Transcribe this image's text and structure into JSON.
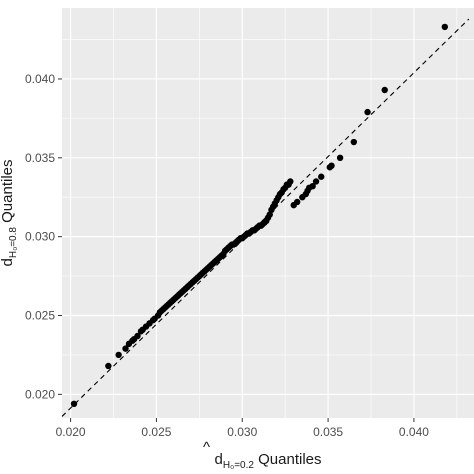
{
  "chart_data": {
    "type": "scatter",
    "title": "",
    "xlabel": {
      "d": "d",
      "hat": "^",
      "sub": "H₀=0.2",
      "text": " Quantiles"
    },
    "ylabel": {
      "d": "d",
      "sub": "H₀=0.8",
      "text": " Quantiles"
    },
    "xlim": [
      0.0195,
      0.0435
    ],
    "ylim": [
      0.0185,
      0.0445
    ],
    "x_ticks": [
      0.02,
      0.025,
      0.03,
      0.035,
      0.04
    ],
    "x_tick_labels": [
      "0.020",
      "0.025",
      "0.030",
      "0.035",
      "0.040"
    ],
    "y_ticks": [
      0.02,
      0.025,
      0.03,
      0.035,
      0.04
    ],
    "y_tick_labels": [
      "0.020",
      "0.025",
      "0.030",
      "0.035",
      "0.040"
    ],
    "grid": true,
    "background_color": "#ebebeb",
    "grid_color": "#ffffff",
    "point_color": "#000000",
    "reference_line": {
      "style": "dashed",
      "color": "#000000",
      "from": [
        0.0195,
        0.0186
      ],
      "to": [
        0.0432,
        0.0438
      ]
    },
    "series": [
      {
        "x": [
          0.0202,
          0.0222,
          0.0228,
          0.0232,
          0.0234,
          0.0236,
          0.0237,
          0.0239,
          0.0241,
          0.0242,
          0.0244,
          0.0246,
          0.0248,
          0.0249,
          0.0251,
          0.0252,
          0.0253,
          0.0254,
          0.0255,
          0.0256,
          0.0257,
          0.0258,
          0.0259,
          0.026,
          0.0261,
          0.0262,
          0.0263,
          0.0264,
          0.0265,
          0.0266,
          0.0267,
          0.0268,
          0.0269,
          0.027,
          0.0271,
          0.0272,
          0.0273,
          0.0274,
          0.0275,
          0.0276,
          0.0277,
          0.0278,
          0.0279,
          0.028,
          0.0281,
          0.0282,
          0.0283,
          0.0284,
          0.0285,
          0.0286,
          0.0287,
          0.0288,
          0.0289,
          0.029,
          0.0291,
          0.0292,
          0.0293,
          0.0294,
          0.0295,
          0.0296,
          0.0297,
          0.0298,
          0.0299,
          0.03,
          0.0301,
          0.0302,
          0.0303,
          0.0304,
          0.0305,
          0.0306,
          0.0307,
          0.0308,
          0.0309,
          0.031,
          0.0311,
          0.0312,
          0.0313,
          0.0314,
          0.0315,
          0.0316,
          0.0317,
          0.0318,
          0.0319,
          0.032,
          0.0321,
          0.0322,
          0.0323,
          0.0324,
          0.0325,
          0.0326,
          0.0327,
          0.0328,
          0.033,
          0.0332,
          0.0335,
          0.0337,
          0.0338,
          0.0339,
          0.0341,
          0.0343,
          0.0346,
          0.0351,
          0.0352,
          0.0357,
          0.0365,
          0.0373,
          0.0383,
          0.0418
        ],
        "y": [
          0.0194,
          0.0218,
          0.0225,
          0.0229,
          0.0232,
          0.0234,
          0.0235,
          0.0237,
          0.024,
          0.0241,
          0.0243,
          0.0245,
          0.0247,
          0.0248,
          0.025,
          0.0252,
          0.0253,
          0.0254,
          0.0255,
          0.0256,
          0.0257,
          0.0258,
          0.0259,
          0.026,
          0.0261,
          0.0262,
          0.0263,
          0.0264,
          0.0265,
          0.0266,
          0.0267,
          0.0268,
          0.0269,
          0.027,
          0.0271,
          0.0272,
          0.0273,
          0.0274,
          0.0275,
          0.0276,
          0.0277,
          0.0278,
          0.0279,
          0.028,
          0.0281,
          0.0282,
          0.0283,
          0.0284,
          0.0285,
          0.0286,
          0.0287,
          0.0288,
          0.0289,
          0.0291,
          0.0292,
          0.0293,
          0.0294,
          0.0295,
          0.0295,
          0.0296,
          0.0297,
          0.0298,
          0.0299,
          0.0299,
          0.03,
          0.0301,
          0.0302,
          0.0302,
          0.0303,
          0.0304,
          0.0304,
          0.0305,
          0.0306,
          0.0307,
          0.0307,
          0.0308,
          0.0309,
          0.031,
          0.0312,
          0.0314,
          0.0317,
          0.0319,
          0.0321,
          0.0323,
          0.0325,
          0.0327,
          0.0328,
          0.033,
          0.0331,
          0.0333,
          0.0333,
          0.0335,
          0.032,
          0.0322,
          0.0325,
          0.0327,
          0.0329,
          0.0331,
          0.0332,
          0.0335,
          0.0338,
          0.0344,
          0.0345,
          0.035,
          0.036,
          0.0379,
          0.0393,
          0.0433
        ]
      }
    ]
  }
}
